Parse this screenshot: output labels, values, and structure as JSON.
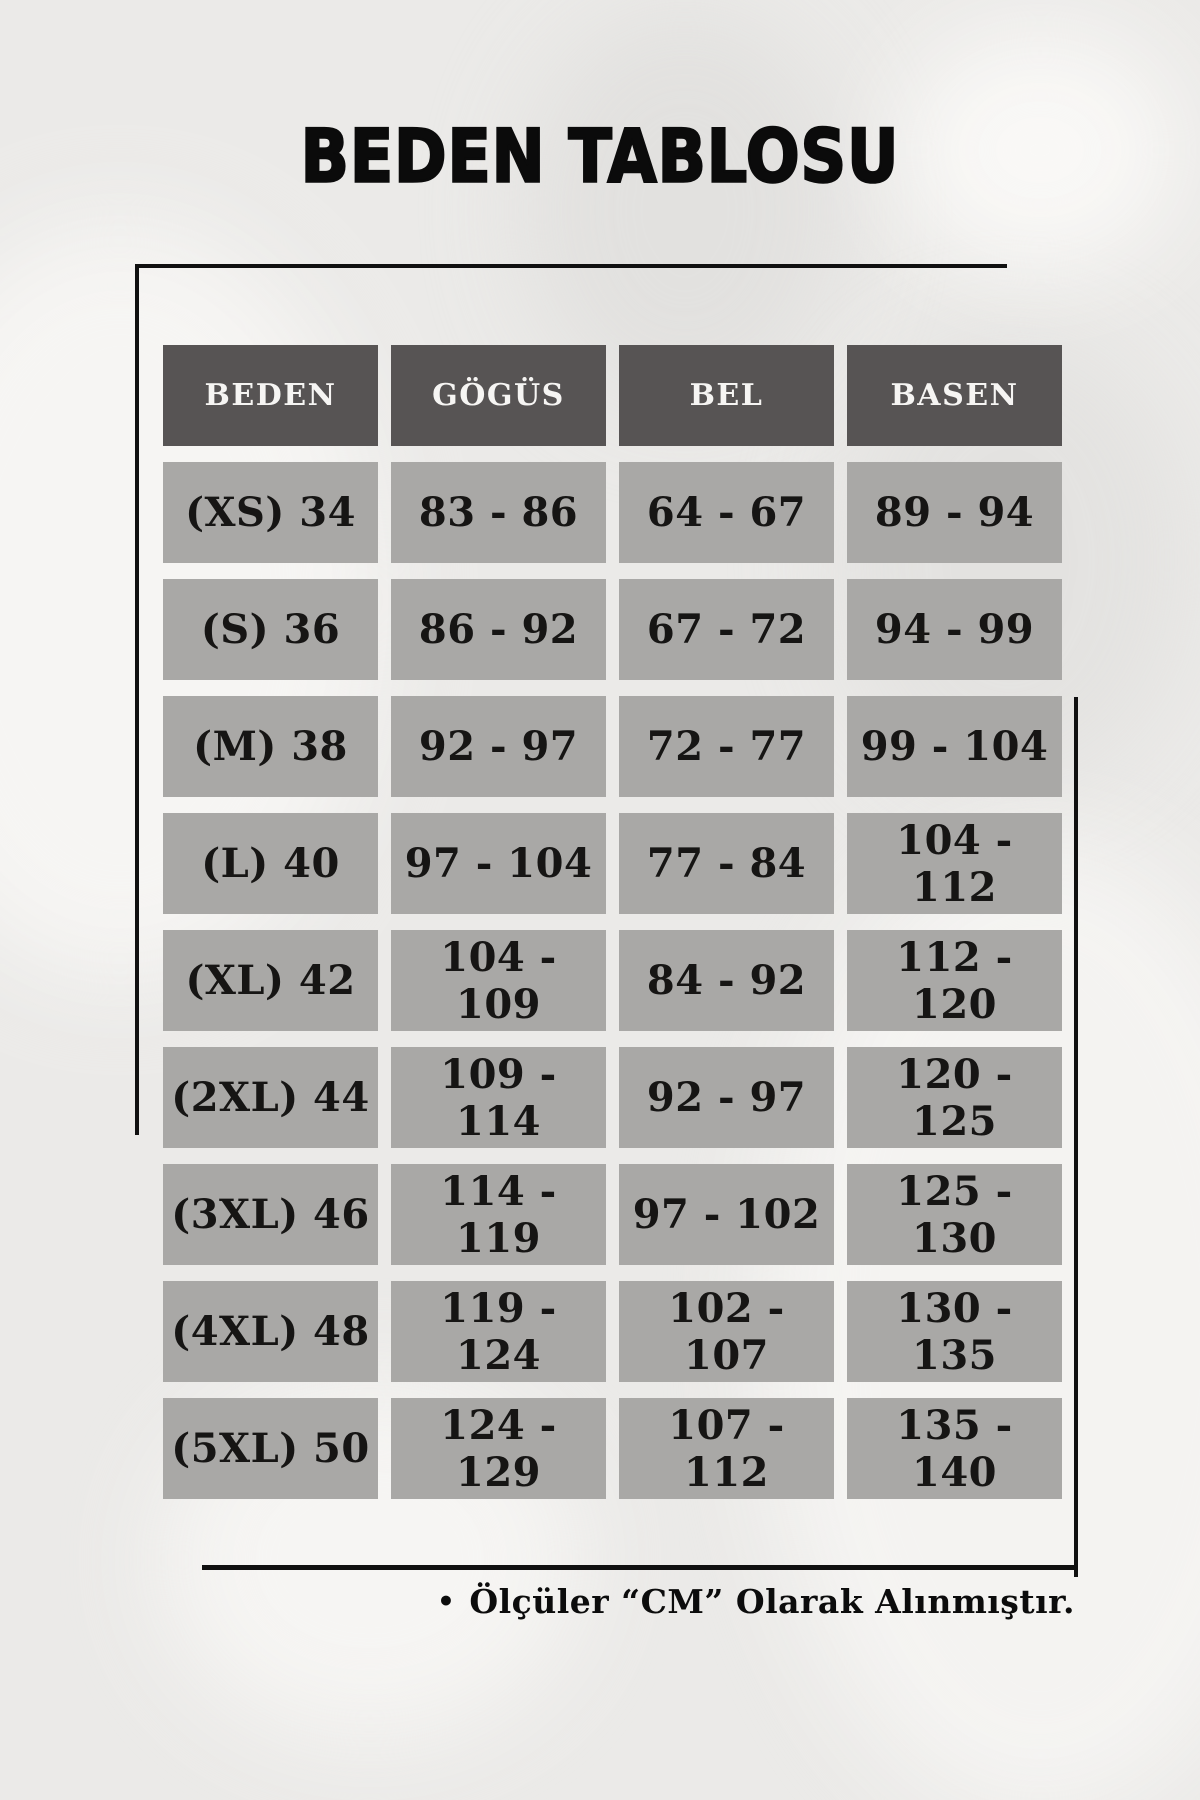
{
  "chart_data": {
    "type": "table",
    "title": "BEDEN TABLOSU",
    "columns": [
      "BEDEN",
      "GÖGÜS",
      "BEL",
      "BASEN"
    ],
    "rows": [
      [
        "(XS) 34",
        "83 - 86",
        "64 - 67",
        "89 - 94"
      ],
      [
        "(S) 36",
        "86 - 92",
        "67 - 72",
        "94 - 99"
      ],
      [
        "(M) 38",
        "92 - 97",
        "72 - 77",
        "99 - 104"
      ],
      [
        "(L) 40",
        "97 - 104",
        "77 - 84",
        "104 - 112"
      ],
      [
        "(XL) 42",
        "104 - 109",
        "84 - 92",
        "112 - 120"
      ],
      [
        "(2XL) 44",
        "109 - 114",
        "92 - 97",
        "120 - 125"
      ],
      [
        "(3XL) 46",
        "114 - 119",
        "97 - 102",
        "125 - 130"
      ],
      [
        "(4XL) 48",
        "119 - 124",
        "102 - 107",
        "130 - 135"
      ],
      [
        "(5XL) 50",
        "124 - 129",
        "107 - 112",
        "135 - 140"
      ]
    ],
    "unit_note": "Ölçüler “CM” Olarak Alınmıştır.",
    "layout": "grid of separated cells, dark header row, decorative corner rules"
  },
  "footer": {
    "bullet": "•",
    "note": "Ölçüler “CM” Olarak Alınmıştır."
  },
  "colors": {
    "background": "#ebeae8",
    "header_bg": "#575454",
    "header_text": "#f6f5f3",
    "cell_bg": "#a9a8a6",
    "cell_text": "#161514",
    "title_text": "#0b0b0b",
    "frame_line": "#101010"
  }
}
